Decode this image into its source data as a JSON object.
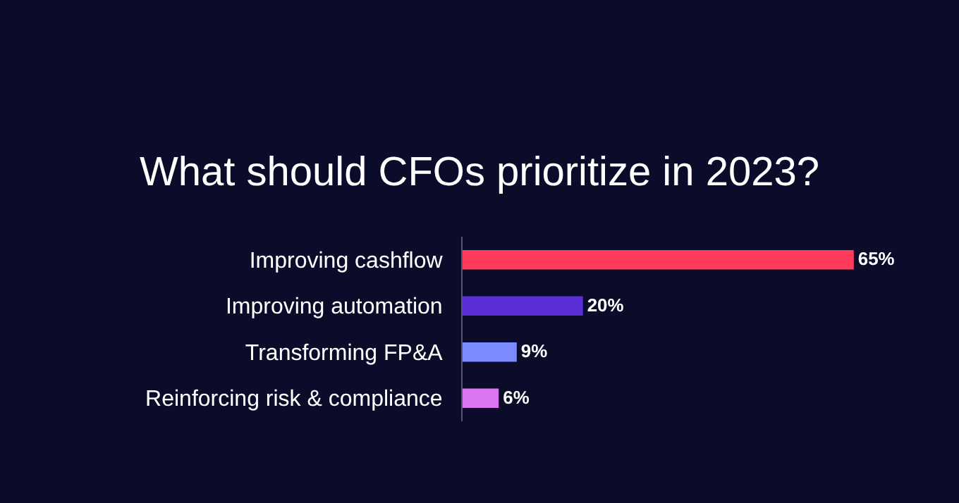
{
  "chart_data": {
    "type": "bar",
    "orientation": "horizontal",
    "title": "What should CFOs prioritize in 2023?",
    "categories": [
      "Improving cashflow",
      "Improving automation",
      "Transforming FP&A",
      "Reinforcing risk & compliance"
    ],
    "values": [
      65,
      20,
      9,
      6
    ],
    "colors": [
      "#ff3b5c",
      "#5a2fd6",
      "#7a8cff",
      "#d975f0"
    ],
    "value_labels": [
      "65%",
      "20%",
      "9%",
      "6%"
    ],
    "tick_labels": "y",
    "grid": false,
    "legend": false
  }
}
